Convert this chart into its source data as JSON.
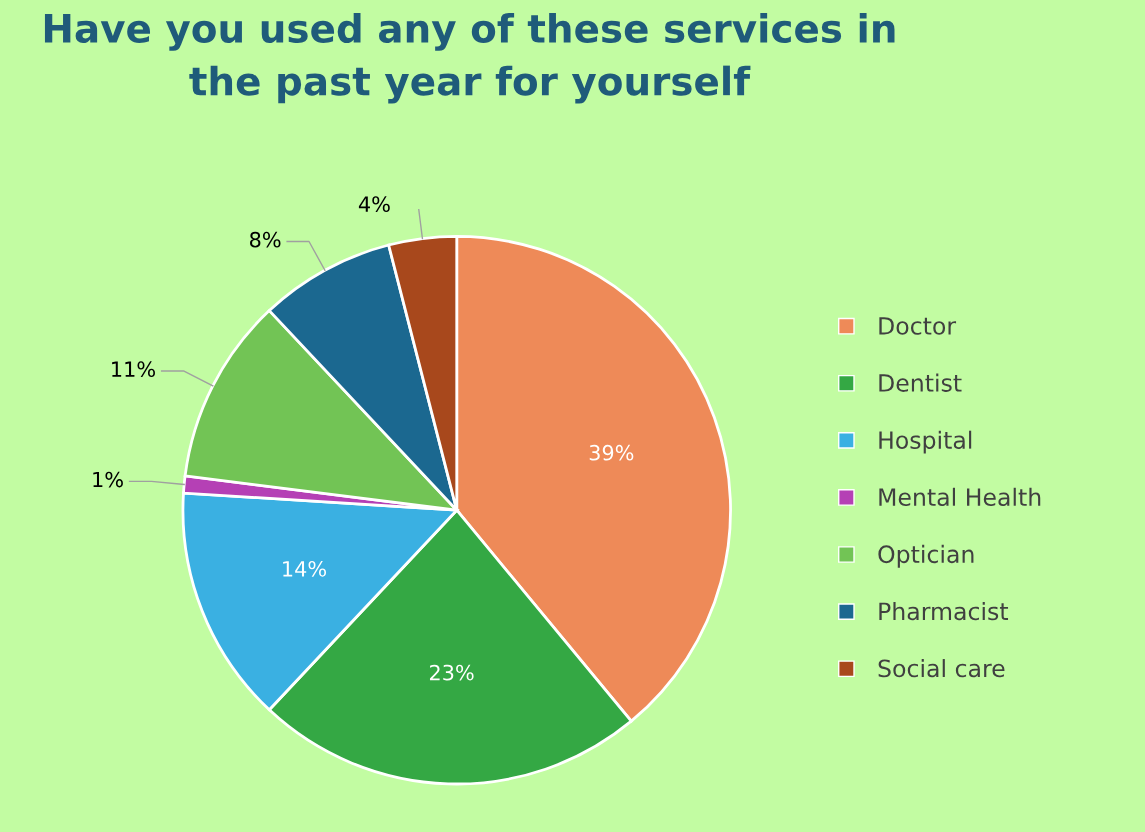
{
  "chart_data": {
    "type": "pie",
    "title": "Have you used any of these services in\nthe past year for yourself",
    "categories": [
      "Doctor",
      "Dentist",
      "Hospital",
      "Mental Health",
      "Optician",
      "Pharmacist",
      "Social care"
    ],
    "values": [
      39,
      23,
      14,
      1,
      11,
      8,
      4
    ],
    "value_labels": [
      "39%",
      "23%",
      "14%",
      "1%",
      "11%",
      "8%",
      "4%"
    ],
    "colors": [
      "#ee8a58",
      "#34a844",
      "#3ab0e2",
      "#b540b5",
      "#72c455",
      "#1b6890",
      "#a8481c"
    ],
    "legend": "right"
  }
}
